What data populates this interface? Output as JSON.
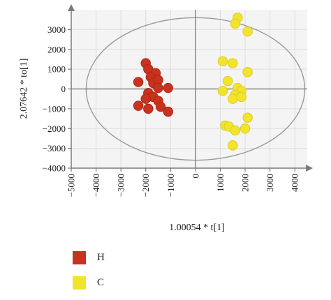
{
  "chart_data": {
    "type": "scatter",
    "title": "",
    "xlabel": "1.00054 * t[1]",
    "ylabel": "2.07642 * to[1]",
    "xlim": [
      -5000,
      4500
    ],
    "ylim": [
      -4000,
      4000
    ],
    "xticks": [
      -5000,
      -4000,
      -3000,
      -2000,
      -1000,
      0,
      1000,
      2000,
      3000,
      4000
    ],
    "yticks": [
      -4000,
      -3000,
      -2000,
      -1000,
      0,
      1000,
      2000,
      3000
    ],
    "xtick_labels": [
      "−5000",
      "−4000",
      "−3000",
      "−2000",
      "−1000",
      "0",
      "1000",
      "2000",
      "3000",
      "4000"
    ],
    "ytick_labels": [
      "−4000",
      "−3000",
      "−2000",
      "−1000",
      "0",
      "1000",
      "2000",
      "3000"
    ],
    "grid": true,
    "confidence_ellipse": {
      "center": [
        0,
        0
      ],
      "rx": 4400,
      "ry": 3600
    },
    "series": [
      {
        "name": "H",
        "color": "#c8321e",
        "points": [
          [
            -2000,
            1300
          ],
          [
            -1900,
            1000
          ],
          [
            -1600,
            800
          ],
          [
            -1800,
            600
          ],
          [
            -1700,
            300
          ],
          [
            -2300,
            350
          ],
          [
            -1500,
            450
          ],
          [
            -1100,
            50
          ],
          [
            -1500,
            50
          ],
          [
            -1900,
            -200
          ],
          [
            -1700,
            -400
          ],
          [
            -1500,
            -600
          ],
          [
            -2000,
            -500
          ],
          [
            -2300,
            -850
          ],
          [
            -1900,
            -1000
          ],
          [
            -1400,
            -900
          ],
          [
            -1100,
            -1150
          ]
        ]
      },
      {
        "name": "C",
        "color": "#f2e32b",
        "points": [
          [
            1700,
            3600
          ],
          [
            1600,
            3300
          ],
          [
            2100,
            2900
          ],
          [
            1100,
            1400
          ],
          [
            1500,
            1300
          ],
          [
            2100,
            850
          ],
          [
            1300,
            400
          ],
          [
            1700,
            50
          ],
          [
            1100,
            -100
          ],
          [
            1850,
            -100
          ],
          [
            1600,
            -300
          ],
          [
            1500,
            -500
          ],
          [
            1850,
            -400
          ],
          [
            2100,
            -1450
          ],
          [
            1200,
            -1850
          ],
          [
            1350,
            -1900
          ],
          [
            1600,
            -2100
          ],
          [
            2000,
            -2000
          ],
          [
            1500,
            -2850
          ]
        ]
      }
    ]
  }
}
